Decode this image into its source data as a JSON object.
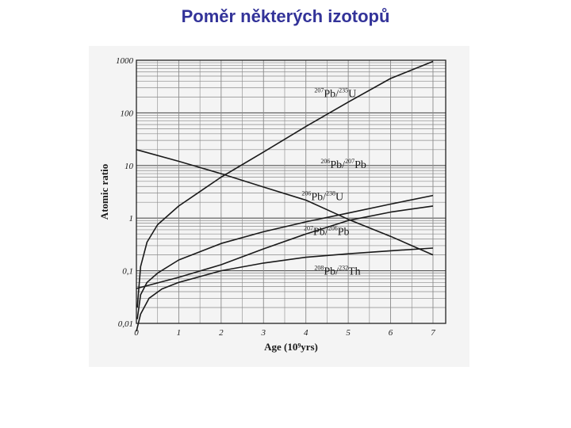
{
  "page": {
    "title": "Poměr některých izotopů"
  },
  "chart_data": {
    "type": "line",
    "title": "",
    "xlabel": "Age (10⁹yrs)",
    "ylabel": "Atomic ratio",
    "x_scale": "linear",
    "y_scale": "log",
    "xlim": [
      0,
      7.3
    ],
    "ylim": [
      0.01,
      1000
    ],
    "x_ticks": [
      "0",
      "1",
      "2",
      "3",
      "4",
      "5",
      "6",
      "7"
    ],
    "y_ticks": [
      "0,01",
      "0,1",
      "1",
      "10",
      "100",
      "1000"
    ],
    "grid": true,
    "series": [
      {
        "name": "²⁰⁷Pb/²³⁵U",
        "label_parts": {
          "sup1": "207",
          "base1": "Pb/",
          "sup2": "235",
          "base2": "U"
        },
        "color": "#1a1a1a",
        "points": [
          [
            0.02,
            0.02
          ],
          [
            0.1,
            0.12
          ],
          [
            0.25,
            0.35
          ],
          [
            0.5,
            0.75
          ],
          [
            1,
            1.7
          ],
          [
            1.5,
            3.2
          ],
          [
            2,
            6
          ],
          [
            3,
            18
          ],
          [
            4,
            55
          ],
          [
            5,
            160
          ],
          [
            6,
            450
          ],
          [
            7,
            950
          ]
        ]
      },
      {
        "name": "²⁰⁶Pb/²⁰⁷Pb",
        "label_parts": {
          "sup1": "206",
          "base1": "Pb/",
          "sup2": "207",
          "base2": "Pb"
        },
        "color": "#1a1a1a",
        "points": [
          [
            0,
            20
          ],
          [
            1,
            12
          ],
          [
            2,
            7
          ],
          [
            3,
            3.9
          ],
          [
            4,
            2.2
          ],
          [
            5,
            0.95
          ],
          [
            6,
            0.45
          ],
          [
            7,
            0.2
          ]
        ]
      },
      {
        "name": "²⁰⁶Pb/²³⁸U",
        "label_parts": {
          "sup1": "206",
          "base1": "Pb/",
          "sup2": "238",
          "base2": "U"
        },
        "color": "#1a1a1a",
        "points": [
          [
            0.02,
            0.012
          ],
          [
            0.1,
            0.035
          ],
          [
            0.25,
            0.06
          ],
          [
            0.5,
            0.09
          ],
          [
            1,
            0.16
          ],
          [
            2,
            0.33
          ],
          [
            3,
            0.55
          ],
          [
            4,
            0.85
          ],
          [
            5,
            1.25
          ],
          [
            6,
            1.85
          ],
          [
            7,
            2.7
          ]
        ]
      },
      {
        "name": "²⁰⁷Pb/²⁰⁶Pb",
        "label_parts": {
          "sup1": "207",
          "base1": "Pb/",
          "sup2": "206",
          "base2": "Pb"
        },
        "color": "#1a1a1a",
        "points": [
          [
            0,
            0.046
          ],
          [
            1,
            0.075
          ],
          [
            2,
            0.13
          ],
          [
            3,
            0.26
          ],
          [
            4,
            0.5
          ],
          [
            5,
            0.9
          ],
          [
            6,
            1.3
          ],
          [
            7,
            1.7
          ]
        ]
      },
      {
        "name": "²⁰⁸Pb/²³²Th",
        "label_parts": {
          "sup1": "208",
          "base1": "Pb/",
          "sup2": "232",
          "base2": "Th"
        },
        "color": "#1a1a1a",
        "points": [
          [
            0,
            0.005
          ],
          [
            0.1,
            0.015
          ],
          [
            0.3,
            0.03
          ],
          [
            0.6,
            0.045
          ],
          [
            1,
            0.06
          ],
          [
            2,
            0.1
          ],
          [
            3,
            0.14
          ],
          [
            4,
            0.18
          ],
          [
            5,
            0.21
          ],
          [
            6,
            0.24
          ],
          [
            7,
            0.27
          ]
        ]
      }
    ]
  }
}
